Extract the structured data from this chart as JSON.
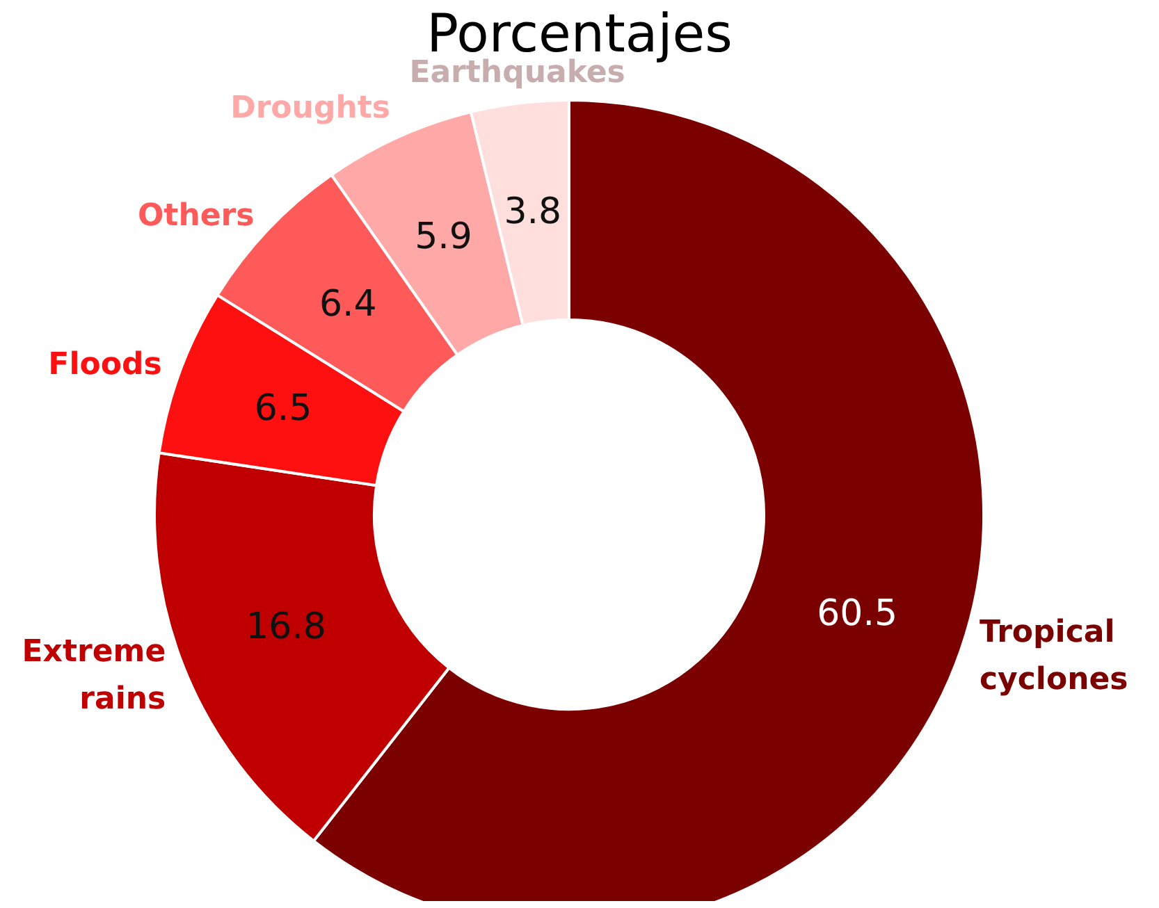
{
  "chart_data": {
    "type": "donut",
    "title": "Porcentajes",
    "categories": [
      "Tropical cyclones",
      "Extreme rains",
      "Floods",
      "Others",
      "Droughts",
      "Earthquakes"
    ],
    "values": [
      60.5,
      16.8,
      6.5,
      6.4,
      5.9,
      3.8
    ],
    "colors": [
      "#7b0000",
      "#c00000",
      "#ff1010",
      "#ff5a5a",
      "#ffa8a8",
      "#ffdede"
    ],
    "data_labels": true
  }
}
